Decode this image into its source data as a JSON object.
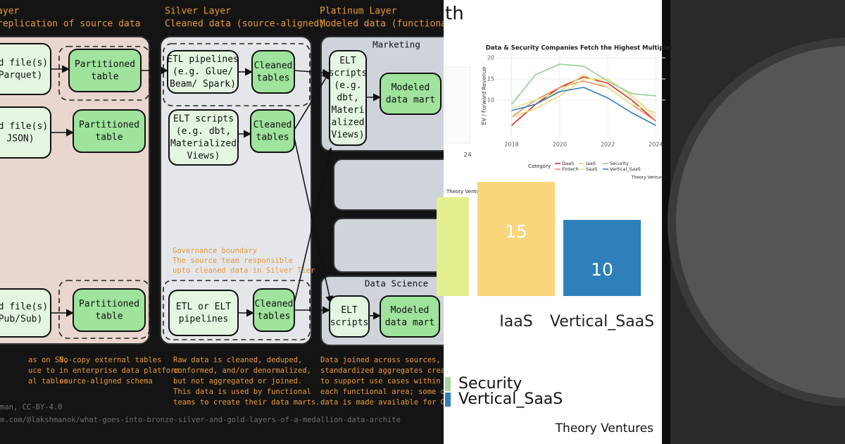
{
  "diagram": {
    "headers": [
      {
        "title": "ayer",
        "subtitle": "replication of source data"
      },
      {
        "title": "Silver Layer",
        "subtitle": "Cleaned data (source-aligned)"
      },
      {
        "title": "Platinum Layer",
        "subtitle": "Modeled data (functionall"
      }
    ],
    "panel_labels": [
      "Marketing",
      "Data Science"
    ],
    "boxes": [
      {
        "lines": [
          "ed file(s)",
          "Parquet)"
        ]
      },
      {
        "lines": [
          "Partitioned",
          "table"
        ]
      },
      {
        "lines": [
          "ETL pipelines",
          "(e.g. Glue/",
          "Beam/ Spark)"
        ]
      },
      {
        "lines": [
          "Cleaned",
          "tables"
        ]
      },
      {
        "lines": [
          "ELT",
          "scripts",
          "(e.g.",
          "dbt,",
          "Materi",
          "alized",
          "Views)"
        ]
      },
      {
        "lines": [
          "Modeled",
          "data mart"
        ]
      },
      {
        "lines": [
          "ed file(s)",
          "JSON)"
        ]
      },
      {
        "lines": [
          "Partitioned",
          "table"
        ]
      },
      {
        "lines": [
          "ELT scripts",
          "(e.g. dbt,",
          "Materialized",
          "Views)"
        ]
      },
      {
        "lines": [
          "Cleaned",
          "tables"
        ]
      },
      {
        "lines": [
          "ed file(s)",
          "Pub/Sub)"
        ]
      },
      {
        "lines": [
          "Partitioned",
          "table"
        ]
      },
      {
        "lines": [
          "ETL or ELT",
          "pipelines"
        ]
      },
      {
        "lines": [
          "Cleaned",
          "tables"
        ]
      },
      {
        "lines": [
          "ELT",
          "scripts"
        ]
      },
      {
        "lines": [
          "Modeled",
          "data mart"
        ]
      }
    ],
    "governance": [
      "Governance boundary",
      "The source team responsible",
      "upto cleaned data in Silver Tier"
    ],
    "notes": [
      [
        "as on S3,",
        "uce to",
        "al tables"
      ],
      [
        "No-copy external tables",
        "in enterprise data platform",
        "source-aligned schema"
      ],
      [
        "Raw data is cleaned, deduped,",
        "conformed, and/or denormalized,",
        "but not aggregated or joined.",
        "This data is used by functional",
        "teams to create their data marts."
      ],
      [
        "Data joined across sources, and",
        "standardized aggregates create",
        "to support use cases within",
        "each functional area; some of th",
        "data is made available for Gold."
      ]
    ],
    "credits": [
      "man, CC-BY-4.0",
      "m.com/@lakshmanok/what-goes-into-bronze-silver-and-gold-layers-of-a-medallion-data-archite"
    ]
  },
  "heading": "th",
  "partial_chart_tick": "24",
  "line_chart": {
    "type": "line",
    "title": "Data & Security Companies Fetch the Highest Multiples",
    "y_label": "EV / Forward Revenue",
    "x": [
      2018,
      2019,
      2020,
      2021,
      2022,
      2023,
      2024
    ],
    "xlim": [
      2017.4,
      2024.4
    ],
    "xticks": [
      2018,
      2020,
      2022,
      2024
    ],
    "ylim": [
      1,
      21
    ],
    "yticks": [
      10,
      15,
      20
    ],
    "grid": true,
    "legend_title": "Category",
    "series": [
      {
        "name": "DaaS",
        "color": "#d7301f",
        "values": [
          4,
          9,
          13,
          15.5,
          14,
          10,
          5
        ]
      },
      {
        "name": "Fintech",
        "color": "#f08a5d",
        "values": [
          6,
          10,
          13,
          14.5,
          13,
          9,
          5
        ]
      },
      {
        "name": "IaaS",
        "color": "#f5d77a",
        "values": [
          6,
          8,
          11,
          15,
          15,
          11,
          6
        ]
      },
      {
        "name": "SaaS",
        "color": "#d6e98a",
        "values": [
          8,
          10,
          12,
          16,
          13,
          9,
          7
        ]
      },
      {
        "name": "Security",
        "color": "#8fcf8a",
        "values": [
          9,
          16,
          18.5,
          18,
          14.5,
          11.5,
          11
        ]
      },
      {
        "name": "Vertical_SaaS",
        "color": "#2f7fba",
        "values": [
          7.5,
          9,
          12,
          13,
          10.5,
          7,
          4
        ]
      }
    ],
    "source": "Theory Ventures"
  },
  "bar_chart": {
    "type": "bar",
    "source_top": "Theory Ventures",
    "categories": [
      null,
      "IaaS",
      "Vertical_SaaS"
    ],
    "values": [
      13,
      15,
      10
    ],
    "colors": [
      "#e3ef8c",
      "#f9d67c",
      "#2f7fba"
    ],
    "legend": [
      {
        "name": "Security",
        "color": "#a6d79b"
      },
      {
        "name": "Vertical_SaaS",
        "color": "#2f7fba"
      }
    ],
    "source": "Theory Ventures"
  }
}
